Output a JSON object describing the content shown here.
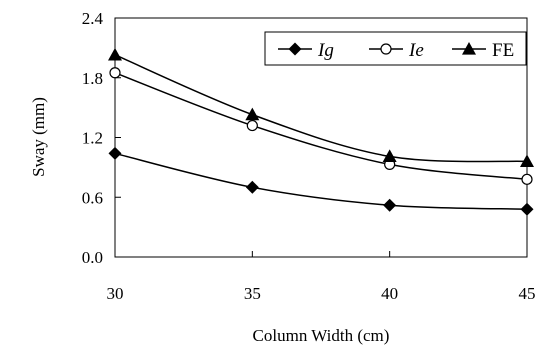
{
  "chart_data": {
    "type": "line",
    "xlabel": "Column Width (cm)",
    "ylabel": "Sway (mm)",
    "x": [
      30,
      35,
      40,
      45
    ],
    "xlim": [
      30,
      45
    ],
    "ylim": [
      0.0,
      2.4
    ],
    "xticks": [
      "30",
      "35",
      "40",
      "45"
    ],
    "yticks": [
      "0.0",
      "0.6",
      "1.2",
      "1.8",
      "2.4"
    ],
    "grid": false,
    "legend_position": "top-right",
    "series": [
      {
        "name": "Ig",
        "marker": "diamond-filled",
        "italic": true,
        "values": [
          1.04,
          0.7,
          0.52,
          0.48
        ]
      },
      {
        "name": "Ie",
        "marker": "circle-open",
        "italic": true,
        "values": [
          1.85,
          1.32,
          0.93,
          0.78
        ]
      },
      {
        "name": "FE",
        "marker": "triangle-filled",
        "italic": false,
        "values": [
          2.03,
          1.43,
          1.01,
          0.96
        ]
      }
    ]
  }
}
